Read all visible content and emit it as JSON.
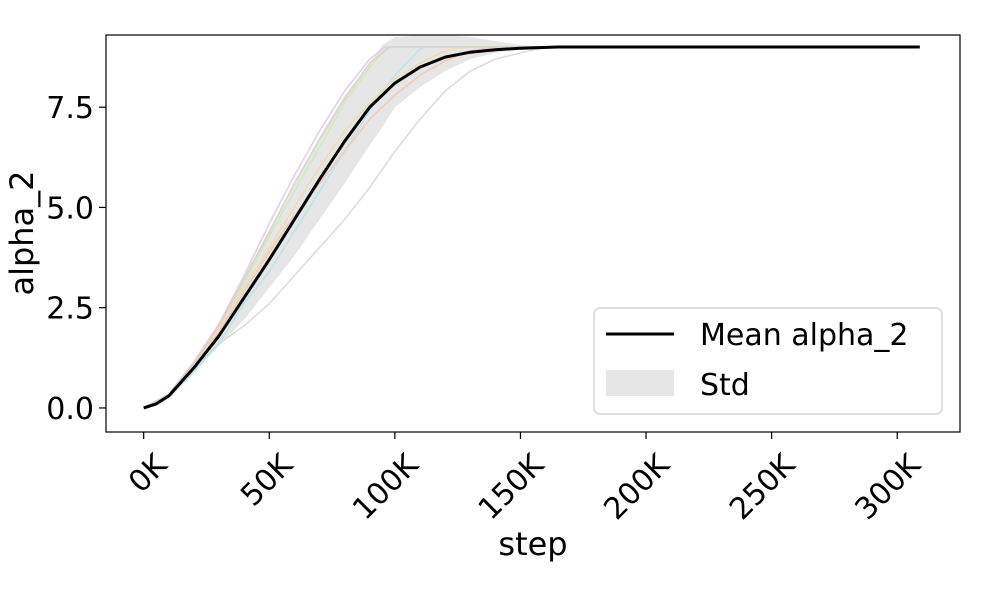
{
  "chart_data": {
    "type": "line",
    "xlabel": "step",
    "ylabel": "alpha_2",
    "xlim": [
      -15000,
      325000
    ],
    "ylim": [
      -0.6,
      9.3
    ],
    "x_ticks": [
      0,
      50000,
      100000,
      150000,
      200000,
      250000,
      300000
    ],
    "x_tick_labels": [
      "0K",
      "50K",
      "100K",
      "150K",
      "200K",
      "250K",
      "300K"
    ],
    "y_ticks": [
      0.0,
      2.5,
      5.0,
      7.5
    ],
    "y_tick_labels": [
      "0.0",
      "2.5",
      "5.0",
      "7.5"
    ],
    "grid": false,
    "legend": {
      "placement": "lower right",
      "entries": [
        {
          "label": "Mean alpha_2",
          "kind": "line",
          "color": "#000000"
        },
        {
          "label": "Std",
          "kind": "patch",
          "color": "#e6e6e6"
        }
      ]
    },
    "mean": {
      "name": "Mean alpha_2",
      "color": "#000000",
      "x": [
        0,
        5000,
        10000,
        20000,
        30000,
        40000,
        50000,
        60000,
        70000,
        80000,
        90000,
        100000,
        110000,
        120000,
        130000,
        140000,
        150000,
        165000,
        200000,
        250000,
        309000
      ],
      "y": [
        0.0,
        0.1,
        0.3,
        1.0,
        1.8,
        2.75,
        3.7,
        4.7,
        5.7,
        6.65,
        7.5,
        8.1,
        8.5,
        8.75,
        8.87,
        8.93,
        8.97,
        9.0,
        9.0,
        9.0,
        9.0
      ]
    },
    "std_band": {
      "name": "Std",
      "color": "#e6e6e6",
      "x": [
        0,
        10000,
        20000,
        30000,
        40000,
        50000,
        60000,
        70000,
        80000,
        90000,
        95000,
        100000,
        110000,
        120000,
        130000,
        140000,
        150000,
        165000
      ],
      "lower": [
        0.0,
        0.25,
        0.9,
        1.55,
        2.2,
        3.0,
        3.8,
        4.7,
        5.6,
        6.55,
        7.0,
        7.5,
        8.0,
        8.4,
        8.7,
        8.85,
        8.95,
        9.0
      ],
      "upper": [
        0.0,
        0.35,
        1.1,
        2.05,
        3.3,
        4.4,
        5.6,
        6.75,
        7.8,
        8.6,
        9.05,
        9.25,
        9.3,
        9.3,
        9.25,
        9.15,
        9.05,
        9.0
      ]
    },
    "runs": [
      {
        "color": "#d9d9d9",
        "x": [
          0,
          10000,
          20000,
          30000,
          40000,
          50000,
          60000,
          70000,
          80000,
          90000,
          100000,
          110000,
          120000,
          130000,
          140000,
          150000,
          160000,
          309000
        ],
        "y": [
          0.0,
          0.3,
          1.0,
          1.6,
          2.05,
          2.6,
          3.3,
          4.0,
          4.7,
          5.5,
          6.4,
          7.2,
          7.9,
          8.4,
          8.7,
          8.85,
          9.0,
          9.0
        ]
      },
      {
        "color": "#e6c8ee",
        "x": [
          0,
          10000,
          20000,
          30000,
          40000,
          50000,
          60000,
          70000,
          80000,
          90000,
          96000,
          309000
        ],
        "y": [
          0.0,
          0.35,
          1.15,
          2.1,
          3.3,
          4.6,
          5.8,
          6.9,
          7.9,
          8.7,
          9.0,
          9.0
        ]
      },
      {
        "color": "#cdeabb",
        "x": [
          0,
          10000,
          20000,
          30000,
          40000,
          50000,
          60000,
          70000,
          80000,
          90000,
          97000,
          309000
        ],
        "y": [
          0.0,
          0.33,
          1.1,
          2.0,
          3.1,
          4.3,
          5.4,
          6.5,
          7.6,
          8.5,
          9.0,
          9.0
        ]
      },
      {
        "color": "#b8e3ec",
        "x": [
          0,
          10000,
          20000,
          30000,
          40000,
          50000,
          60000,
          70000,
          80000,
          90000,
          100000,
          110000,
          112000,
          309000
        ],
        "y": [
          0.0,
          0.25,
          0.9,
          1.6,
          2.6,
          3.4,
          4.4,
          5.4,
          6.4,
          7.4,
          8.3,
          8.95,
          9.0,
          9.0
        ]
      },
      {
        "color": "#f3c8b8",
        "x": [
          0,
          10000,
          20000,
          30000,
          40000,
          50000,
          60000,
          70000,
          80000,
          90000,
          100000,
          110000,
          120000,
          130000,
          140000,
          309000
        ],
        "y": [
          0.0,
          0.3,
          1.0,
          1.9,
          2.9,
          3.9,
          4.8,
          5.6,
          6.4,
          7.2,
          7.8,
          8.3,
          8.65,
          8.9,
          9.0,
          9.0
        ]
      },
      {
        "color": "#f2d9b0",
        "x": [
          0,
          10000,
          20000,
          30000,
          40000,
          50000,
          60000,
          70000,
          80000,
          90000,
          100000,
          110000,
          120000,
          128000,
          309000
        ],
        "y": [
          0.0,
          0.3,
          1.05,
          2.0,
          3.0,
          4.0,
          5.0,
          6.0,
          6.9,
          7.6,
          8.2,
          8.6,
          8.9,
          9.0,
          9.0
        ]
      },
      {
        "color": "#d9d2c5",
        "x": [
          0,
          10000,
          20000,
          30000,
          40000,
          50000,
          60000,
          70000,
          80000,
          90000,
          98000,
          309000
        ],
        "y": [
          0.0,
          0.34,
          1.1,
          2.05,
          3.2,
          4.4,
          5.6,
          6.7,
          7.7,
          8.6,
          9.0,
          9.0
        ]
      }
    ]
  }
}
